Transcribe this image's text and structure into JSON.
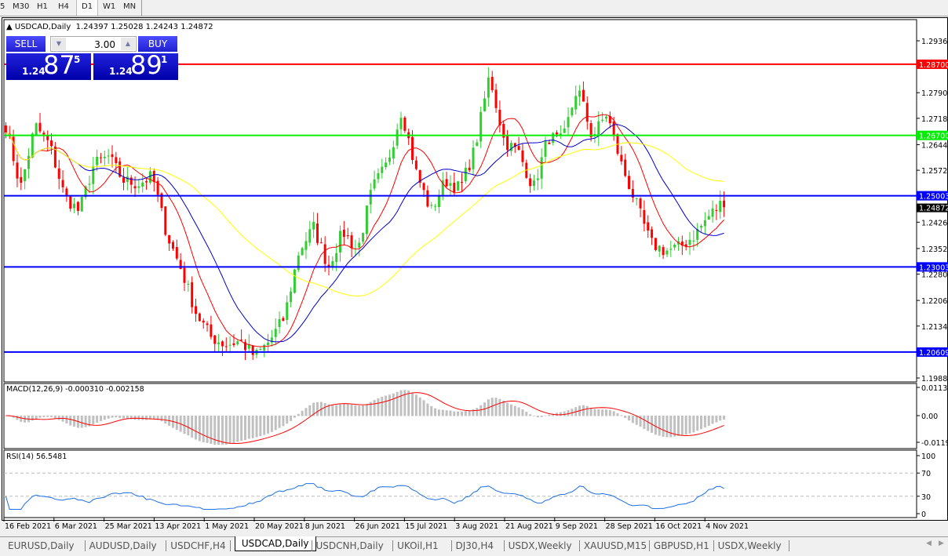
{
  "timeframes": [
    "5",
    "M30",
    "H1",
    "H4",
    "D1",
    "W1",
    "MN"
  ],
  "active_timeframe": "D1",
  "chart": {
    "title": "USDCAD,Daily",
    "ohlc": "1.24397 1.25028 1.24243 1.24872"
  },
  "trade_panel": {
    "sell_label": "SELL",
    "buy_label": "BUY",
    "lot": "3.00",
    "sell_price": {
      "prefix": "1.24",
      "big": "87",
      "sup": "5"
    },
    "buy_price": {
      "prefix": "1.24",
      "big": "89",
      "sup": "1"
    }
  },
  "chart_data": {
    "type": "candlestick",
    "symbol": "USDCAD",
    "period": "Daily",
    "price_ticks": [
      "1.29360",
      "1.27900",
      "1.27180",
      "1.26440",
      "1.25720",
      "1.24260",
      "1.23520",
      "1.22800",
      "1.22060",
      "1.21340",
      "1.19880"
    ],
    "price_range": [
      1.1988,
      1.2936
    ],
    "current_price": "1.24872",
    "levels": [
      {
        "price": "1.28700",
        "color": "#ff0000"
      },
      {
        "price": "1.26700",
        "color": "#00ee00"
      },
      {
        "price": "1.25003",
        "color": "#0000ff"
      },
      {
        "price": "1.23003",
        "color": "#0000ff"
      },
      {
        "price": "1.20609",
        "color": "#0000ff"
      }
    ],
    "date_ticks": [
      "16 Feb 2021",
      "6 Mar 2021",
      "25 Mar 2021",
      "13 Apr 2021",
      "1 May 2021",
      "20 May 2021",
      "8 Jun 2021",
      "26 Jun 2021",
      "15 Jul 2021",
      "3 Aug 2021",
      "21 Aug 2021",
      "9 Sep 2021",
      "28 Sep 2021",
      "16 Oct 2021",
      "4 Nov 2021"
    ],
    "approx_close_path": [
      1.2698,
      1.2521,
      1.2698,
      1.2643,
      1.25,
      1.2456,
      1.2588,
      1.261,
      1.2544,
      1.2533,
      1.2555,
      1.239,
      1.229,
      1.2169,
      1.2103,
      1.2081,
      1.2092,
      1.2048,
      1.2092,
      1.2158,
      1.2345,
      1.2412,
      1.2301,
      1.24,
      1.2345,
      1.2521,
      1.2588,
      1.2742,
      1.2566,
      1.2456,
      1.2544,
      1.2521,
      1.2632,
      1.2841,
      1.2654,
      1.2621,
      1.2521,
      1.2665,
      1.2654,
      1.2808,
      1.2665,
      1.2731,
      1.2588,
      1.2478,
      1.2367,
      1.2345,
      1.2356,
      1.239,
      1.2445,
      1.2487
    ],
    "bull_color": "#33cc33",
    "bear_color": "#ff0000",
    "moving_averages": [
      {
        "color": "#ff0000"
      },
      {
        "color": "#0000cc"
      },
      {
        "color": "#ffff00"
      }
    ],
    "macd": {
      "label": "MACD(12,26,9) -0.000310 -0.002158",
      "ticks": [
        "0.01135",
        "0.00",
        "-0.01190"
      ],
      "histogram_color": "#c0c0c0",
      "signal_color": "#ff0000"
    },
    "rsi": {
      "label": "RSI(14) 56.5481",
      "ticks": [
        "100",
        "70",
        "30",
        "0"
      ],
      "line_color": "#1e6fe6"
    }
  },
  "tabs": [
    "EURUSD,Daily",
    "AUDUSD,Daily",
    "USDCHF,H4",
    "USDCAD,Daily",
    "USDCNH,Daily",
    "UKOil,H1",
    "DJ30,H4",
    "USDX,Weekly",
    "XAUUSD,M15",
    "GBPUSD,H1",
    "USDX,Weekly"
  ],
  "active_tab": "USDCAD,Daily"
}
